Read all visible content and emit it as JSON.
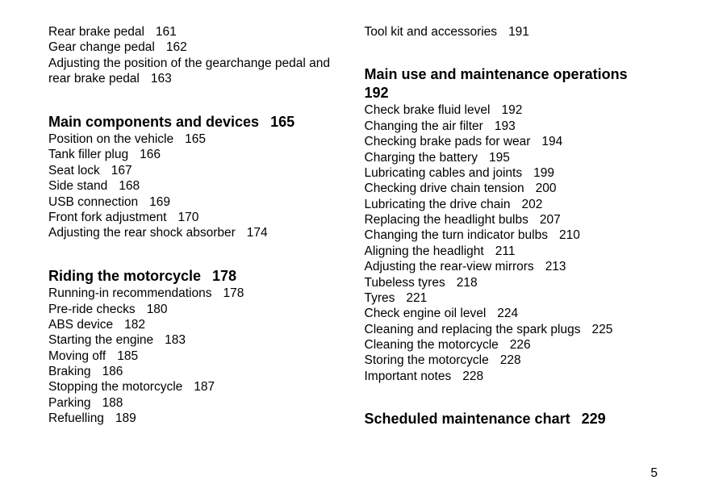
{
  "pageNumber": "5",
  "left": {
    "preEntries": [
      {
        "label": "Rear brake pedal",
        "page": "161"
      },
      {
        "label": "Gear change pedal",
        "page": "162"
      },
      {
        "label": "Adjusting the position of the gearchange pedal and rear brake pedal",
        "page": "163"
      }
    ],
    "sections": [
      {
        "heading": {
          "label": "Main components and devices",
          "page": "165"
        },
        "entries": [
          {
            "label": "Position on the vehicle",
            "page": "165"
          },
          {
            "label": "Tank filler plug",
            "page": "166"
          },
          {
            "label": "Seat lock",
            "page": "167"
          },
          {
            "label": "Side stand",
            "page": "168"
          },
          {
            "label": "USB connection",
            "page": "169"
          },
          {
            "label": "Front fork adjustment",
            "page": "170"
          },
          {
            "label": "Adjusting the rear shock absorber",
            "page": "174"
          }
        ]
      },
      {
        "heading": {
          "label": "Riding the motorcycle",
          "page": "178"
        },
        "entries": [
          {
            "label": "Running-in recommendations",
            "page": "178"
          },
          {
            "label": "Pre-ride checks",
            "page": "180"
          },
          {
            "label": "ABS device",
            "page": "182"
          },
          {
            "label": "Starting the engine",
            "page": "183"
          },
          {
            "label": "Moving off",
            "page": "185"
          },
          {
            "label": "Braking",
            "page": "186"
          },
          {
            "label": "Stopping the motorcycle",
            "page": "187"
          },
          {
            "label": "Parking",
            "page": "188"
          },
          {
            "label": "Refuelling",
            "page": "189"
          }
        ]
      }
    ]
  },
  "right": {
    "preEntries": [
      {
        "label": "Tool kit and accessories",
        "page": "191"
      }
    ],
    "sections": [
      {
        "heading": {
          "label": "Main use and maintenance operations",
          "page": "192"
        },
        "entries": [
          {
            "label": "Check brake fluid level",
            "page": "192"
          },
          {
            "label": "Changing the air filter",
            "page": "193"
          },
          {
            "label": "Checking brake pads for wear",
            "page": "194"
          },
          {
            "label": "Charging the battery",
            "page": "195"
          },
          {
            "label": "Lubricating cables and joints",
            "page": "199"
          },
          {
            "label": "Checking drive chain tension",
            "page": "200"
          },
          {
            "label": "Lubricating the drive chain",
            "page": "202"
          },
          {
            "label": "Replacing the headlight bulbs",
            "page": "207"
          },
          {
            "label": "Changing the turn indicator bulbs",
            "page": "210"
          },
          {
            "label": "Aligning the headlight",
            "page": "211"
          },
          {
            "label": "Adjusting the rear-view mirrors",
            "page": "213"
          },
          {
            "label": "Tubeless tyres",
            "page": "218"
          },
          {
            "label": "Tyres",
            "page": "221"
          },
          {
            "label": "Check engine oil level",
            "page": "224"
          },
          {
            "label": "Cleaning and replacing the spark plugs",
            "page": "225"
          },
          {
            "label": "Cleaning the motorcycle",
            "page": "226"
          },
          {
            "label": "Storing the motorcycle",
            "page": "228"
          },
          {
            "label": "Important notes",
            "page": "228"
          }
        ]
      },
      {
        "heading": {
          "label": "Scheduled maintenance chart",
          "page": "229"
        },
        "entries": []
      }
    ]
  }
}
